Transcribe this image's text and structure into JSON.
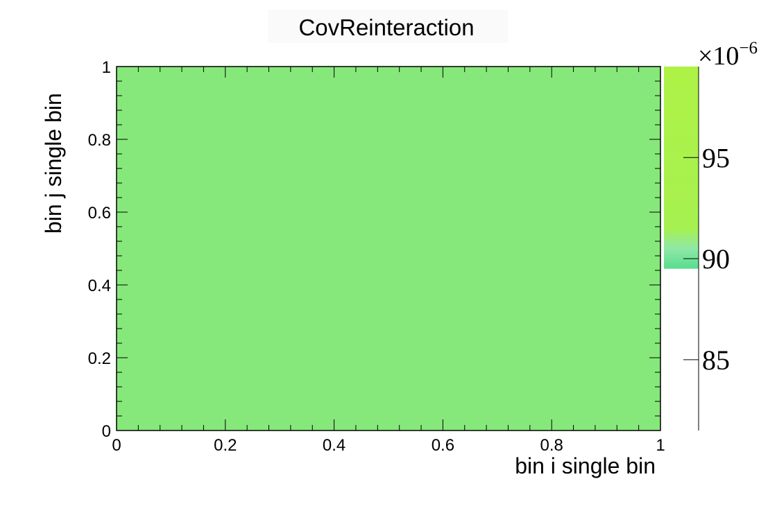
{
  "chart_data": {
    "type": "heatmap",
    "title": "CovReinteraction",
    "xlabel": "bin i single bin",
    "ylabel": "bin j single bin",
    "xlim": [
      0,
      1
    ],
    "ylim": [
      0,
      1
    ],
    "x_ticks": [
      "0",
      "0.2",
      "0.4",
      "0.6",
      "0.8",
      "1"
    ],
    "y_ticks": [
      "0",
      "0.2",
      "0.4",
      "0.6",
      "0.8",
      "1"
    ],
    "cells": [
      {
        "x_range": [
          0,
          1
        ],
        "y_range": [
          0,
          1
        ],
        "value": 9e-05,
        "color": "#86e87a"
      }
    ],
    "colorbar": {
      "multiplier": "×10",
      "exponent": "−6",
      "range": [
        81.5,
        99.5
      ],
      "ticks": [
        "85",
        "90",
        "95"
      ],
      "tick_values": [
        85,
        90,
        95
      ],
      "filled_from": 89.5,
      "colors": {
        "low": "#58dd8e",
        "mid": "#97f05a",
        "high": "#aef246"
      }
    },
    "grid": false,
    "legend": "none"
  }
}
